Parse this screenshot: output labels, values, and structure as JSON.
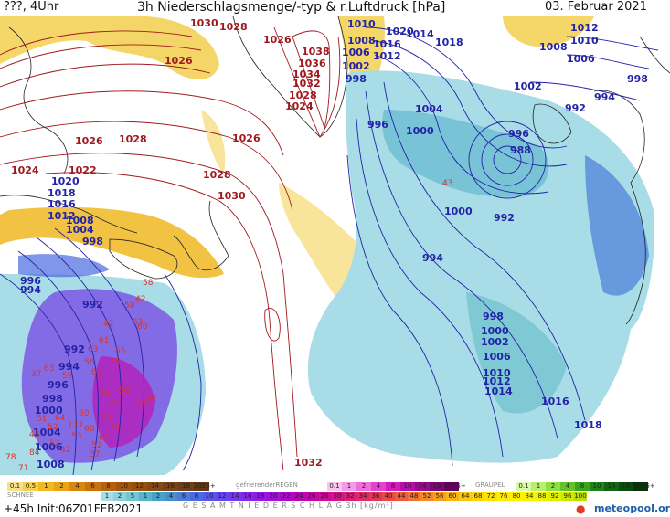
{
  "header": {
    "left": "???, 4Uhr",
    "title": "3h Niederschlagsmenge/-typ & r.Luftdruck [hPa]",
    "date": "03. Februar 2021"
  },
  "footer": {
    "forecast": "+45h Init:06Z01FEB2021",
    "total_label": "G E S A M T N I E D E R S C H L A G   3h   [kg/m²]",
    "brand": "meteopool.org"
  },
  "legend": {
    "snow": {
      "label": "SCHNEE",
      "values": [
        "0.1",
        "0.5",
        "1",
        "2",
        "4",
        "6",
        "8",
        "10",
        "12",
        "14",
        "16",
        "18",
        "2025+"
      ]
    },
    "freezing": {
      "label": "gefrierenderREGEN",
      "values": [
        "0.1",
        "1",
        "2",
        "4",
        "8",
        "10",
        "14",
        "16",
        "2025+"
      ]
    },
    "graupel": {
      "label": "GRAUPEL",
      "values": [
        "0.1",
        "1",
        "2",
        "4",
        "8",
        "10",
        "14",
        "16",
        "2025+"
      ]
    },
    "rain": {
      "values": [
        "1",
        "2",
        "5",
        "1",
        "2",
        "4",
        "6",
        "8",
        "10",
        "12",
        "14",
        "16",
        "18",
        "20",
        "22",
        "24",
        "26",
        "28",
        "30",
        "32",
        "34",
        "36",
        "40",
        "44",
        "48",
        "52",
        "56",
        "60",
        "64",
        "68",
        "72",
        "76",
        "80",
        "84",
        "88",
        "92",
        "96",
        "100"
      ]
    },
    "colors": {
      "snow": [
        "#f7e08a",
        "#f3cf4e",
        "#f0b822",
        "#e9a316",
        "#d9870d",
        "#c8730f",
        "#b5620e",
        "#a55410",
        "#955010",
        "#864814",
        "#7a4316",
        "#6e3e16",
        "#603a16"
      ],
      "freezing": [
        "#f7c4ef",
        "#f29be6",
        "#ec6fdc",
        "#e143cf",
        "#d21cc1",
        "#b510a6",
        "#960b8c",
        "#7a0872",
        "#5f055b"
      ],
      "graupel": [
        "#d9f7a8",
        "#b9ef6e",
        "#8fdf3f",
        "#62c427",
        "#38a41b",
        "#1f8417",
        "#136513",
        "#0c4c10",
        "#07360b"
      ],
      "rain": [
        "#a8dce6",
        "#8ed0dc",
        "#74c4d1",
        "#5ab3cc",
        "#4aa1c8",
        "#4a8ed0",
        "#4a7cd8",
        "#4a6ae0",
        "#5558e6",
        "#6446ea",
        "#7636ec",
        "#8626ec",
        "#9418e4",
        "#a010d8",
        "#ac08c8",
        "#b804b8",
        "#c404a8",
        "#cc0a98",
        "#d21488",
        "#d81e78",
        "#de2a68",
        "#e23658",
        "#e84a4a",
        "#ec5e3c",
        "#f07430",
        "#f48a26",
        "#f8a01c",
        "#fab414",
        "#fcc80e",
        "#fdd60a",
        "#fee206",
        "#ffec04",
        "#fff200",
        "#f8f400",
        "#eef400",
        "#e0f000",
        "#cfe800",
        "#bde000"
      ]
    }
  },
  "isobar_labels": [
    {
      "text": "1030",
      "color": "red"
    },
    {
      "text": "1028",
      "color": "red"
    },
    {
      "text": "1026",
      "color": "red"
    },
    {
      "text": "1026",
      "color": "red"
    },
    {
      "text": "1038",
      "color": "red"
    },
    {
      "text": "1036",
      "color": "red"
    },
    {
      "text": "1034",
      "color": "red"
    },
    {
      "text": "1032",
      "color": "red"
    },
    {
      "text": "1028",
      "color": "red"
    },
    {
      "text": "1024",
      "color": "red"
    },
    {
      "text": "1026",
      "color": "red"
    },
    {
      "text": "1028",
      "color": "red"
    },
    {
      "text": "1026",
      "color": "red"
    },
    {
      "text": "1024",
      "color": "red"
    },
    {
      "text": "1022",
      "color": "red"
    },
    {
      "text": "1028",
      "color": "red"
    },
    {
      "text": "1030",
      "color": "red"
    },
    {
      "text": "1032",
      "color": "red"
    },
    {
      "text": "1010",
      "color": "blue"
    },
    {
      "text": "1020",
      "color": "blue"
    },
    {
      "text": "1008",
      "color": "blue"
    },
    {
      "text": "1016",
      "color": "blue"
    },
    {
      "text": "1014",
      "color": "blue"
    },
    {
      "text": "1018",
      "color": "blue"
    },
    {
      "text": "1006",
      "color": "blue"
    },
    {
      "text": "1012",
      "color": "blue"
    },
    {
      "text": "1002",
      "color": "blue"
    },
    {
      "text": "998",
      "color": "blue"
    },
    {
      "text": "1012",
      "color": "blue"
    },
    {
      "text": "1010",
      "color": "blue"
    },
    {
      "text": "1008",
      "color": "blue"
    },
    {
      "text": "1006",
      "color": "blue"
    },
    {
      "text": "1000",
      "color": "blue"
    },
    {
      "text": "1002",
      "color": "blue"
    },
    {
      "text": "996",
      "color": "blue"
    },
    {
      "text": "994",
      "color": "blue"
    },
    {
      "text": "998",
      "color": "blue"
    },
    {
      "text": "992",
      "color": "blue"
    },
    {
      "text": "1004",
      "color": "blue"
    },
    {
      "text": "996",
      "color": "blue"
    },
    {
      "text": "1000",
      "color": "blue"
    },
    {
      "text": "988",
      "color": "blue"
    },
    {
      "text": "992",
      "color": "blue"
    },
    {
      "text": "994",
      "color": "blue"
    },
    {
      "text": "998",
      "color": "blue"
    },
    {
      "text": "1000",
      "color": "blue"
    },
    {
      "text": "1002",
      "color": "blue"
    },
    {
      "text": "1006",
      "color": "blue"
    },
    {
      "text": "1010",
      "color": "blue"
    },
    {
      "text": "1012",
      "color": "blue"
    },
    {
      "text": "1014",
      "color": "blue"
    },
    {
      "text": "1016",
      "color": "blue"
    },
    {
      "text": "1018",
      "color": "blue"
    },
    {
      "text": "1020",
      "color": "blue"
    },
    {
      "text": "1018",
      "color": "blue"
    },
    {
      "text": "1016",
      "color": "blue"
    },
    {
      "text": "1012",
      "color": "blue"
    },
    {
      "text": "1008",
      "color": "blue"
    },
    {
      "text": "1004",
      "color": "blue"
    },
    {
      "text": "998",
      "color": "blue"
    },
    {
      "text": "996",
      "color": "blue"
    },
    {
      "text": "994",
      "color": "blue"
    },
    {
      "text": "992",
      "color": "blue"
    },
    {
      "text": "992",
      "color": "blue"
    },
    {
      "text": "994",
      "color": "blue"
    },
    {
      "text": "996",
      "color": "blue"
    },
    {
      "text": "998",
      "color": "blue"
    },
    {
      "text": "1000",
      "color": "blue"
    },
    {
      "text": "1004",
      "color": "blue"
    },
    {
      "text": "1006",
      "color": "blue"
    },
    {
      "text": "1008",
      "color": "blue"
    }
  ],
  "precip_labels": [
    "43",
    "42",
    "37",
    "58",
    "63",
    "61",
    "55",
    "63",
    "58",
    "56",
    "61",
    "50",
    "63",
    "59",
    "64",
    "60",
    "51",
    "60",
    "71",
    "62",
    "42",
    "58",
    "42",
    "60",
    "127",
    "52",
    "53",
    "37",
    "47",
    "84",
    "78",
    "42",
    "71",
    "64",
    "53",
    "62",
    "52",
    "60",
    "52"
  ],
  "map_colors": {
    "ocean": "#ffffff",
    "coast": "#222222",
    "isobar_high": "#a0191e",
    "isobar_low": "#2323a8",
    "snow": "#f3cf4e",
    "rain_light": "#a8dce6",
    "rain_mid": "#5ab3cc",
    "rain_heavy": "#7b4fe6"
  }
}
